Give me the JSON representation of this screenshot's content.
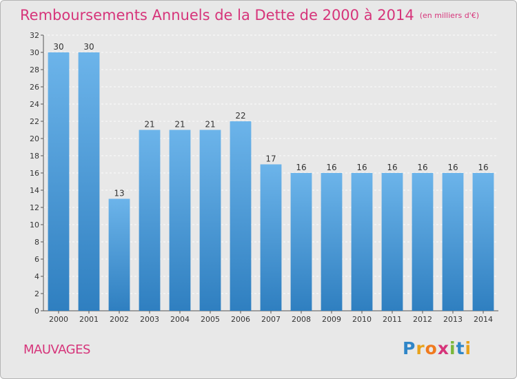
{
  "header": {
    "title": "Remboursements Annuels de la Dette de 2000 à 2014",
    "unit": "(en milliers d'€)"
  },
  "footer": {
    "place": "MAUVAGES",
    "logo": [
      "P",
      "r",
      "o",
      "x",
      "i",
      "t",
      "i"
    ]
  },
  "colors": {
    "bar_light": "#6cb4ea",
    "bar_dark": "#2f7fc0",
    "title": "#d6347a",
    "background": "#e8e8e8"
  },
  "chart_data": {
    "type": "bar",
    "title": "Remboursements Annuels de la Dette de 2000 à 2014",
    "categories": [
      "2000",
      "2001",
      "2002",
      "2003",
      "2004",
      "2005",
      "2006",
      "2007",
      "2008",
      "2009",
      "2010",
      "2011",
      "2012",
      "2013",
      "2014"
    ],
    "values": [
      30,
      30,
      13,
      21,
      21,
      21,
      22,
      17,
      16,
      16,
      16,
      16,
      16,
      16,
      16
    ],
    "xlabel": "",
    "ylabel": "",
    "ylim": [
      0,
      32
    ],
    "yticks": [
      0,
      2,
      4,
      6,
      8,
      10,
      12,
      14,
      16,
      18,
      20,
      22,
      24,
      26,
      28,
      30,
      32
    ],
    "grid": true,
    "data_labels": true
  }
}
